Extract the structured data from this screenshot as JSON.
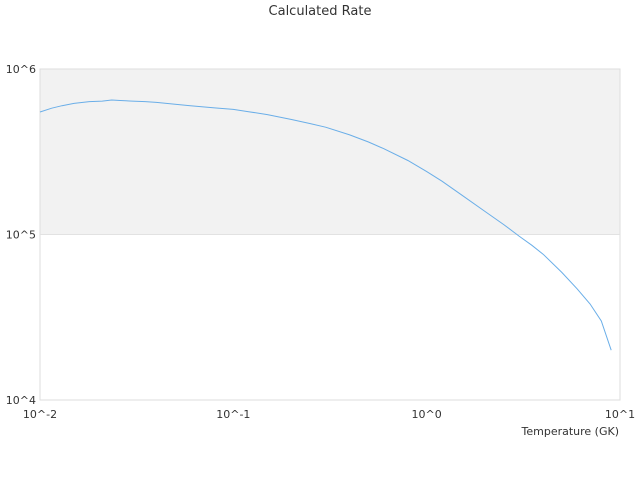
{
  "chart_data": {
    "type": "line",
    "title": "Calculated Rate",
    "xlabel": "Temperature (GK)",
    "ylabel": "",
    "x_scale": "log",
    "y_scale": "log",
    "xlim": [
      0.01,
      10
    ],
    "ylim": [
      10000,
      1000000
    ],
    "x_ticks": [
      "10^-2",
      "10^-1",
      "10^0",
      "10^1"
    ],
    "y_ticks": [
      "10^4",
      "10^5",
      "10^6"
    ],
    "grid": false,
    "band": {
      "from": 100000,
      "to": 1000000,
      "color": "#f2f2f2"
    },
    "series": [
      {
        "name": "",
        "color": "#6aaee8",
        "x": [
          0.01,
          0.0115,
          0.013,
          0.015,
          0.018,
          0.021,
          0.0235,
          0.026,
          0.03,
          0.035,
          0.04,
          0.05,
          0.06,
          0.08,
          0.1,
          0.12,
          0.15,
          0.2,
          0.25,
          0.3,
          0.4,
          0.5,
          0.6,
          0.8,
          1.0,
          1.2,
          1.5,
          2.0,
          2.5,
          3.0,
          3.5,
          4.0,
          5.0,
          6.0,
          7.0,
          8.0,
          9.0
        ],
        "y": [
          550000,
          580000,
          600000,
          620000,
          635000,
          640000,
          650000,
          645000,
          640000,
          635000,
          628000,
          612000,
          600000,
          582000,
          570000,
          552000,
          530000,
          495000,
          468000,
          445000,
          400000,
          362000,
          330000,
          280000,
          240000,
          210000,
          175000,
          138000,
          115000,
          98000,
          86000,
          76000,
          59000,
          47000,
          38000,
          30000,
          20000
        ]
      }
    ]
  }
}
